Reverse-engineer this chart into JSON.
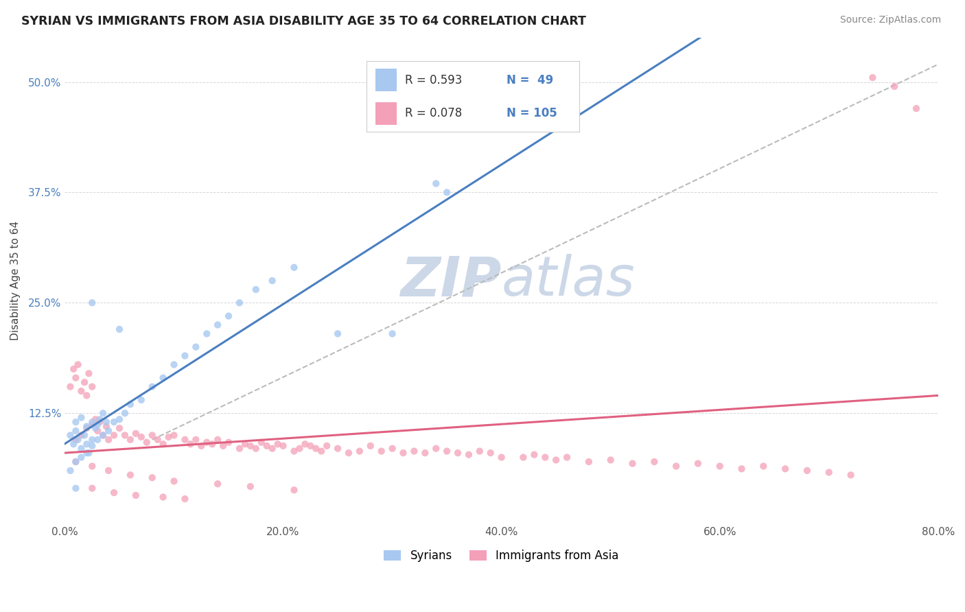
{
  "title": "SYRIAN VS IMMIGRANTS FROM ASIA DISABILITY AGE 35 TO 64 CORRELATION CHART",
  "source": "Source: ZipAtlas.com",
  "ylabel": "Disability Age 35 to 64",
  "xlim": [
    0.0,
    0.8
  ],
  "ylim": [
    0.0,
    0.55
  ],
  "xtick_labels": [
    "0.0%",
    "20.0%",
    "40.0%",
    "60.0%",
    "80.0%"
  ],
  "xtick_vals": [
    0.0,
    0.2,
    0.4,
    0.6,
    0.8
  ],
  "ytick_labels": [
    "12.5%",
    "25.0%",
    "37.5%",
    "50.0%"
  ],
  "ytick_vals": [
    0.125,
    0.25,
    0.375,
    0.5
  ],
  "color_syrian": "#a8c8f0",
  "color_asian": "#f4a0b8",
  "color_syrian_line": "#4a7fc0",
  "color_asian_line": "#e06080",
  "color_trend_line": "#bbbbbb",
  "watermark_color": "#ccd8e8",
  "background_color": "#ffffff",
  "syrian_x": [
    0.005,
    0.008,
    0.01,
    0.012,
    0.015,
    0.018,
    0.02,
    0.022,
    0.025,
    0.01,
    0.015,
    0.02,
    0.025,
    0.028,
    0.03,
    0.032,
    0.035,
    0.038,
    0.005,
    0.01,
    0.015,
    0.02,
    0.025,
    0.03,
    0.035,
    0.04,
    0.045,
    0.05,
    0.055,
    0.06,
    0.07,
    0.08,
    0.09,
    0.1,
    0.11,
    0.12,
    0.13,
    0.14,
    0.15,
    0.16,
    0.175,
    0.19,
    0.21,
    0.25,
    0.3,
    0.025,
    0.05,
    0.34,
    0.35,
    0.01
  ],
  "syrian_y": [
    0.1,
    0.09,
    0.105,
    0.095,
    0.085,
    0.1,
    0.09,
    0.08,
    0.095,
    0.115,
    0.12,
    0.11,
    0.115,
    0.108,
    0.112,
    0.118,
    0.125,
    0.115,
    0.06,
    0.07,
    0.075,
    0.08,
    0.088,
    0.095,
    0.1,
    0.105,
    0.115,
    0.118,
    0.125,
    0.135,
    0.14,
    0.155,
    0.165,
    0.18,
    0.19,
    0.2,
    0.215,
    0.225,
    0.235,
    0.25,
    0.265,
    0.275,
    0.29,
    0.215,
    0.215,
    0.25,
    0.22,
    0.385,
    0.375,
    0.04
  ],
  "asian_x": [
    0.005,
    0.008,
    0.01,
    0.012,
    0.015,
    0.018,
    0.02,
    0.022,
    0.025,
    0.01,
    0.015,
    0.02,
    0.025,
    0.028,
    0.03,
    0.032,
    0.035,
    0.038,
    0.04,
    0.045,
    0.05,
    0.055,
    0.06,
    0.065,
    0.07,
    0.075,
    0.08,
    0.085,
    0.09,
    0.095,
    0.1,
    0.11,
    0.115,
    0.12,
    0.125,
    0.13,
    0.135,
    0.14,
    0.145,
    0.15,
    0.16,
    0.165,
    0.17,
    0.175,
    0.18,
    0.185,
    0.19,
    0.195,
    0.2,
    0.21,
    0.215,
    0.22,
    0.225,
    0.23,
    0.235,
    0.24,
    0.25,
    0.26,
    0.27,
    0.28,
    0.29,
    0.3,
    0.31,
    0.32,
    0.33,
    0.34,
    0.35,
    0.36,
    0.37,
    0.38,
    0.39,
    0.4,
    0.42,
    0.43,
    0.44,
    0.45,
    0.46,
    0.48,
    0.5,
    0.52,
    0.54,
    0.56,
    0.58,
    0.6,
    0.62,
    0.64,
    0.66,
    0.68,
    0.7,
    0.72,
    0.01,
    0.025,
    0.04,
    0.06,
    0.08,
    0.1,
    0.14,
    0.17,
    0.21,
    0.025,
    0.045,
    0.065,
    0.09,
    0.11,
    0.74,
    0.76,
    0.78
  ],
  "asian_y": [
    0.155,
    0.175,
    0.165,
    0.18,
    0.15,
    0.16,
    0.145,
    0.17,
    0.155,
    0.095,
    0.1,
    0.108,
    0.112,
    0.118,
    0.105,
    0.115,
    0.1,
    0.11,
    0.095,
    0.1,
    0.108,
    0.1,
    0.095,
    0.102,
    0.098,
    0.092,
    0.1,
    0.095,
    0.09,
    0.098,
    0.1,
    0.095,
    0.09,
    0.095,
    0.088,
    0.092,
    0.09,
    0.095,
    0.088,
    0.092,
    0.085,
    0.09,
    0.088,
    0.085,
    0.092,
    0.088,
    0.085,
    0.09,
    0.088,
    0.082,
    0.085,
    0.09,
    0.088,
    0.085,
    0.082,
    0.088,
    0.085,
    0.08,
    0.082,
    0.088,
    0.082,
    0.085,
    0.08,
    0.082,
    0.08,
    0.085,
    0.082,
    0.08,
    0.078,
    0.082,
    0.08,
    0.075,
    0.075,
    0.078,
    0.075,
    0.072,
    0.075,
    0.07,
    0.072,
    0.068,
    0.07,
    0.065,
    0.068,
    0.065,
    0.062,
    0.065,
    0.062,
    0.06,
    0.058,
    0.055,
    0.07,
    0.065,
    0.06,
    0.055,
    0.052,
    0.048,
    0.045,
    0.042,
    0.038,
    0.04,
    0.035,
    0.032,
    0.03,
    0.028,
    0.505,
    0.495,
    0.47
  ]
}
